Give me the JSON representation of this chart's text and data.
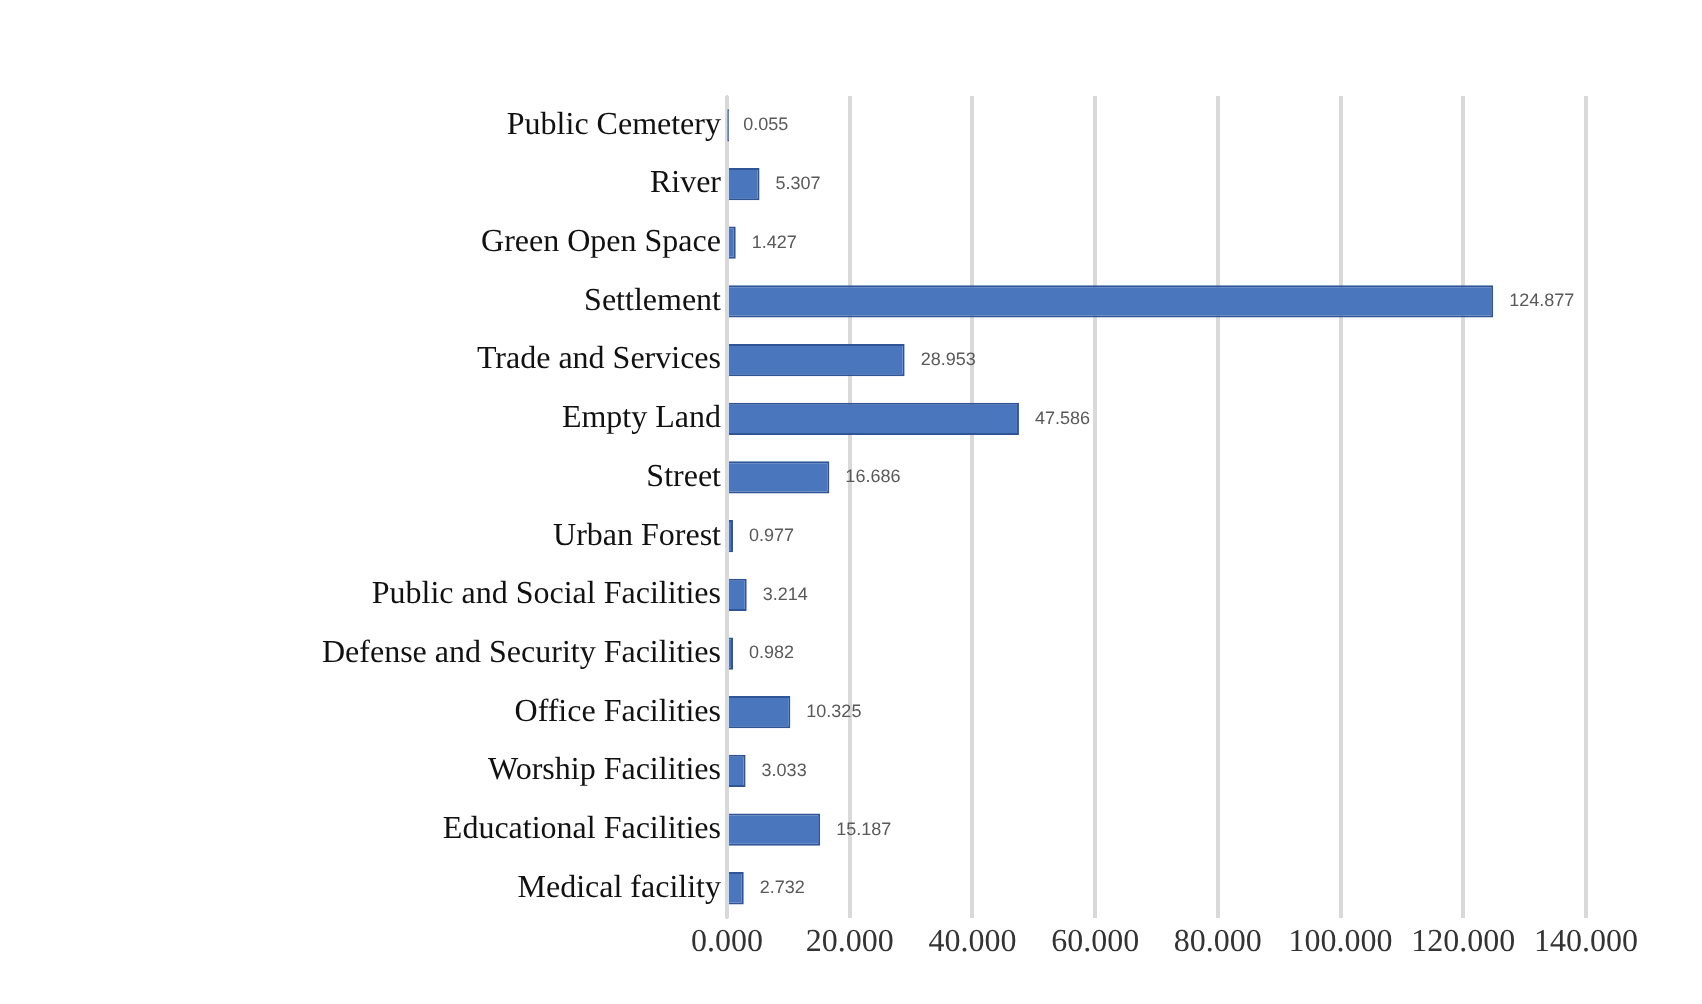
{
  "chart_data": {
    "type": "bar",
    "orientation": "horizontal",
    "categories": [
      "Public Cemetery",
      "River",
      "Green Open Space",
      "Settlement",
      "Trade and Services",
      "Empty Land",
      "Street",
      "Urban Forest",
      "Public and Social Facilities",
      "Defense and Security Facilities",
      "Office Facilities",
      "Worship Facilities",
      "Educational Facilities",
      "Medical facility"
    ],
    "values": [
      0.055,
      5.307,
      1.427,
      124.877,
      28.953,
      47.586,
      16.686,
      0.977,
      3.214,
      0.982,
      10.325,
      3.033,
      15.187,
      2.732
    ],
    "value_labels": [
      "0.055",
      "5.307",
      "1.427",
      "124.877",
      "28.953",
      "47.586",
      "16.686",
      "0.977",
      "3.214",
      "0.982",
      "10.325",
      "3.033",
      "15.187",
      "2.732"
    ],
    "color": "#4a76bd",
    "xlim": [
      0,
      140
    ],
    "xticks": [
      {
        "value": 0,
        "label": "0.000"
      },
      {
        "value": 20,
        "label": "20.000"
      },
      {
        "value": 40,
        "label": "40.000"
      },
      {
        "value": 60,
        "label": "60.000"
      },
      {
        "value": 80,
        "label": "80.000"
      },
      {
        "value": 100,
        "label": "100.000"
      },
      {
        "value": 120,
        "label": "120.000"
      },
      {
        "value": 140,
        "label": "140.000"
      }
    ],
    "grid": "x"
  }
}
